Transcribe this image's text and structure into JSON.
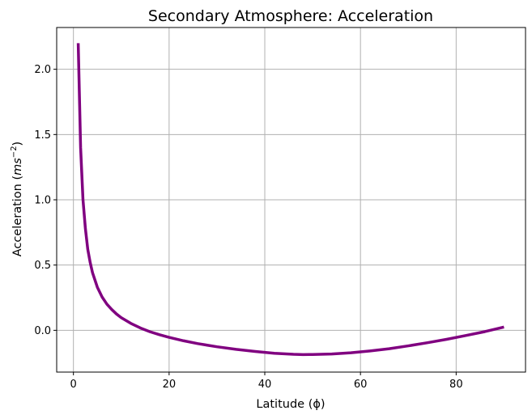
{
  "chart_data": {
    "type": "line",
    "title": "Secondary Atmosphere: Acceleration",
    "xlabel": "Latitude (ϕ)",
    "ylabel_main": "Acceleration (",
    "ylabel_unit": "ms",
    "ylabel_exp": "−2",
    "ylabel_close": ")",
    "xlim": [
      -3.5,
      94.5
    ],
    "ylim": [
      -0.32,
      2.32
    ],
    "x_ticks": [
      0,
      20,
      40,
      60,
      80
    ],
    "y_ticks": [
      0.0,
      0.5,
      1.0,
      1.5,
      2.0
    ],
    "x_tick_labels": [
      "0",
      "20",
      "40",
      "60",
      "80"
    ],
    "y_tick_labels": [
      "0.0",
      "0.5",
      "1.0",
      "1.5",
      "2.0"
    ],
    "grid": true,
    "series": [
      {
        "color": "#800080",
        "x": [
          1,
          1.5,
          2,
          2.5,
          3,
          3.5,
          4,
          5,
          6,
          7,
          8,
          9,
          10,
          12,
          14,
          16,
          18,
          20,
          23,
          26,
          30,
          34,
          38,
          42,
          46,
          48,
          50,
          54,
          58,
          62,
          66,
          70,
          74,
          78,
          82,
          86,
          90
        ],
        "y": [
          2.2,
          1.4,
          1.0,
          0.78,
          0.62,
          0.52,
          0.44,
          0.33,
          0.255,
          0.2,
          0.16,
          0.125,
          0.097,
          0.053,
          0.018,
          -0.011,
          -0.034,
          -0.054,
          -0.08,
          -0.102,
          -0.126,
          -0.146,
          -0.162,
          -0.176,
          -0.184,
          -0.186,
          -0.185,
          -0.181,
          -0.172,
          -0.158,
          -0.141,
          -0.119,
          -0.095,
          -0.069,
          -0.04,
          -0.01,
          0.025
        ]
      }
    ]
  }
}
